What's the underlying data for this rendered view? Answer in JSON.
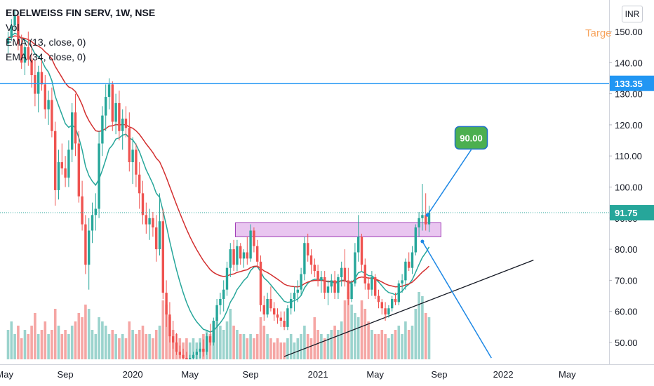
{
  "header": {
    "symbol_line": "EDELWEISS FIN SERV, 1W, NSE",
    "indicators": [
      "Vol",
      "EMA (13, close, 0)",
      "EMA (34, close, 0)"
    ],
    "target_text": "Targe",
    "currency": "INR"
  },
  "colors": {
    "up": "#26a69a",
    "down": "#ef5350",
    "vol_up": "#9bd3cd",
    "vol_down": "#f5a6a4",
    "ema13": "#26a69a",
    "ema34": "#d32f2f",
    "hline": "#2196f3",
    "projection": "#1e88e5",
    "trendline": "#131722",
    "zone_fill": "#e9c6f0",
    "zone_border": "#a23fb8",
    "target_bubble": "#4caf50",
    "last_price_bg": "#26a69a",
    "level_bg": "#2196f3"
  },
  "chart_data": {
    "type": "candlestick",
    "title": "EDELWEISS FIN SERV, 1W, NSE",
    "price_axis": {
      "ticks": [
        "50.00",
        "60.00",
        "70.00",
        "80.00",
        "90.00",
        "100.00",
        "110.00",
        "120.00",
        "130.00",
        "140.00",
        "150.00"
      ],
      "range": [
        45,
        158
      ]
    },
    "time_axis": {
      "labels": [
        "May",
        "Sep",
        "2020",
        "May",
        "Sep",
        "2021",
        "May",
        "Sep",
        "2022",
        "May"
      ],
      "label_bar_index": [
        -1,
        17,
        37,
        54,
        72,
        92,
        109,
        128,
        147,
        166
      ]
    },
    "annotations": {
      "horizontal_level": {
        "value": 133.35,
        "label": "133.35"
      },
      "last_price": {
        "value": 91.75,
        "label": "91.75"
      },
      "target_bubble": {
        "text": "90.00"
      },
      "resistance_zone": {
        "from_bar": 67.5,
        "to_bar": 128.5,
        "low": 84,
        "high": 88.5
      },
      "projection_up": {
        "points": [
          [
            124.5,
            91
          ],
          [
            137.5,
            112
          ]
        ]
      },
      "projection_down": {
        "points": [
          [
            123,
            82.5
          ],
          [
            143.5,
            45
          ]
        ]
      },
      "support_trendline": {
        "points": [
          [
            82,
            45.5
          ],
          [
            156,
            76.5
          ]
        ]
      }
    },
    "ohlc_legend": "Open, High, Low, Close weekly",
    "candles": [
      [
        146,
        150,
        143,
        148
      ],
      [
        148,
        154,
        147,
        152
      ],
      [
        152,
        157,
        150,
        155
      ],
      [
        155,
        156,
        144,
        146
      ],
      [
        146,
        149,
        138,
        140
      ],
      [
        140,
        147,
        136,
        145
      ],
      [
        145,
        150,
        139,
        141
      ],
      [
        141,
        146,
        132,
        136
      ],
      [
        136,
        141,
        126,
        130
      ],
      [
        130,
        139,
        124,
        137
      ],
      [
        137,
        142,
        131,
        133
      ],
      [
        133,
        136,
        122,
        125
      ],
      [
        125,
        131,
        120,
        128
      ],
      [
        128,
        132,
        116,
        118
      ],
      [
        118,
        121,
        94,
        99
      ],
      [
        99,
        112,
        96,
        108
      ],
      [
        108,
        114,
        104,
        106
      ],
      [
        106,
        110,
        100,
        103
      ],
      [
        103,
        115,
        100,
        112
      ],
      [
        112,
        127,
        108,
        124
      ],
      [
        124,
        130,
        110,
        114
      ],
      [
        114,
        118,
        95,
        97
      ],
      [
        97,
        102,
        86,
        88
      ],
      [
        88,
        91,
        72,
        75
      ],
      [
        75,
        90,
        67,
        86
      ],
      [
        86,
        95,
        82,
        91
      ],
      [
        91,
        98,
        86,
        93
      ],
      [
        93,
        118,
        90,
        114
      ],
      [
        114,
        126,
        110,
        123
      ],
      [
        123,
        133,
        118,
        129
      ],
      [
        129,
        135,
        125,
        133
      ],
      [
        133,
        134,
        118,
        121
      ],
      [
        121,
        130,
        117,
        127
      ],
      [
        127,
        131,
        115,
        118
      ],
      [
        118,
        125,
        112,
        122
      ],
      [
        122,
        126,
        116,
        119
      ],
      [
        119,
        124,
        105,
        108
      ],
      [
        108,
        116,
        101,
        112
      ],
      [
        112,
        114,
        100,
        104
      ],
      [
        104,
        108,
        93,
        98
      ],
      [
        98,
        102,
        88,
        91
      ],
      [
        91,
        95,
        85,
        88
      ],
      [
        88,
        93,
        83,
        90
      ],
      [
        90,
        92,
        84,
        87
      ],
      [
        87,
        91,
        76,
        80
      ],
      [
        80,
        98,
        78,
        89
      ],
      [
        89,
        93,
        64,
        66
      ],
      [
        66,
        70,
        55,
        59
      ],
      [
        59,
        63,
        50,
        52
      ],
      [
        52,
        57,
        48,
        50
      ],
      [
        50,
        53,
        46,
        47
      ],
      [
        47,
        49,
        45,
        46
      ],
      [
        46,
        48,
        44,
        45
      ],
      [
        45,
        47,
        43,
        44
      ],
      [
        44,
        46,
        42,
        45
      ],
      [
        45,
        47,
        43,
        46
      ],
      [
        46,
        48,
        44,
        47
      ],
      [
        47,
        50,
        45,
        48
      ],
      [
        48,
        51,
        45.5,
        47
      ],
      [
        47,
        53,
        46,
        52
      ],
      [
        52,
        56,
        49,
        50
      ],
      [
        50,
        58,
        49,
        57
      ],
      [
        57,
        64,
        55,
        62
      ],
      [
        62,
        66,
        59,
        64
      ],
      [
        64,
        70,
        60,
        67
      ],
      [
        67,
        76,
        65,
        74
      ],
      [
        74,
        82,
        71,
        80
      ],
      [
        80,
        83,
        73,
        75
      ],
      [
        75,
        83,
        73,
        81
      ],
      [
        81,
        82,
        75,
        77
      ],
      [
        77,
        80,
        74,
        79
      ],
      [
        79,
        84,
        75,
        77
      ],
      [
        77,
        88,
        76,
        86
      ],
      [
        86,
        87,
        79,
        81
      ],
      [
        81,
        83,
        74,
        76
      ],
      [
        76,
        78,
        60,
        62
      ],
      [
        62,
        65,
        57,
        59
      ],
      [
        59,
        66,
        58,
        64
      ],
      [
        64,
        68,
        60,
        61
      ],
      [
        61,
        63,
        57,
        59
      ],
      [
        59,
        61,
        56,
        58
      ],
      [
        58,
        60,
        55,
        57
      ],
      [
        57,
        60,
        54,
        55
      ],
      [
        55,
        62,
        54,
        61
      ],
      [
        61,
        66,
        59,
        64
      ],
      [
        64,
        68,
        60,
        66
      ],
      [
        66,
        70,
        63,
        67
      ],
      [
        67,
        74,
        65,
        72
      ],
      [
        72,
        84,
        70,
        82
      ],
      [
        82,
        85,
        76,
        78
      ],
      [
        78,
        80,
        72,
        75
      ],
      [
        75,
        77,
        71,
        73
      ],
      [
        73,
        75,
        68,
        70
      ],
      [
        70,
        73,
        66,
        71
      ],
      [
        71,
        73,
        64,
        66
      ],
      [
        66,
        70,
        62,
        68
      ],
      [
        68,
        72,
        66,
        70
      ],
      [
        70,
        73,
        64,
        66
      ],
      [
        66,
        72,
        64,
        71
      ],
      [
        71,
        76,
        68,
        74
      ],
      [
        74,
        80,
        68,
        70
      ],
      [
        70,
        74,
        62,
        64
      ],
      [
        64,
        70,
        63,
        69
      ],
      [
        69,
        82,
        68,
        79
      ],
      [
        79,
        91,
        76,
        84
      ],
      [
        84,
        85,
        73,
        75
      ],
      [
        75,
        77,
        67,
        69
      ],
      [
        69,
        71,
        64,
        67
      ],
      [
        67,
        73,
        65,
        71
      ],
      [
        71,
        72,
        64,
        65
      ],
      [
        65,
        67,
        61,
        63
      ],
      [
        63,
        64,
        59,
        61
      ],
      [
        61,
        63,
        57,
        59
      ],
      [
        59,
        62,
        58,
        61
      ],
      [
        61,
        65,
        60,
        64
      ],
      [
        64,
        66,
        62,
        63
      ],
      [
        63,
        70,
        62,
        69
      ],
      [
        69,
        72,
        66,
        70
      ],
      [
        70,
        77,
        67,
        76
      ],
      [
        76,
        79,
        73,
        74
      ],
      [
        74,
        81,
        72,
        79
      ],
      [
        79,
        88,
        78,
        87
      ],
      [
        87,
        92,
        84,
        90
      ],
      [
        90,
        101,
        86,
        91
      ],
      [
        91,
        98,
        86,
        88
      ],
      [
        88,
        94,
        85.5,
        91.75
      ]
    ],
    "volumes": [
      0.35,
      0.45,
      0.3,
      0.4,
      0.25,
      0.35,
      0.3,
      0.4,
      0.55,
      0.3,
      0.35,
      0.45,
      0.3,
      0.35,
      0.6,
      0.4,
      0.3,
      0.35,
      0.3,
      0.4,
      0.45,
      0.55,
      0.5,
      0.65,
      0.6,
      0.35,
      0.3,
      0.5,
      0.45,
      0.4,
      0.3,
      0.35,
      0.3,
      0.25,
      0.3,
      0.25,
      0.45,
      0.35,
      0.3,
      0.35,
      0.4,
      0.3,
      0.3,
      0.25,
      0.35,
      0.4,
      0.7,
      0.65,
      0.5,
      0.35,
      0.3,
      0.25,
      0.2,
      0.25,
      0.2,
      0.25,
      0.2,
      0.25,
      0.3,
      0.35,
      0.3,
      0.45,
      0.5,
      0.4,
      0.35,
      0.45,
      0.6,
      0.4,
      0.35,
      0.3,
      0.3,
      0.25,
      0.3,
      0.25,
      0.3,
      0.5,
      0.4,
      0.3,
      0.25,
      0.2,
      0.25,
      0.2,
      0.2,
      0.25,
      0.3,
      0.2,
      0.25,
      0.3,
      0.4,
      0.3,
      0.25,
      0.5,
      0.35,
      0.3,
      0.25,
      0.3,
      0.35,
      0.4,
      0.35,
      0.45,
      0.7,
      0.8,
      0.65,
      0.55,
      0.5,
      0.7,
      0.6,
      0.45,
      0.35,
      0.3,
      0.3,
      0.35,
      0.3,
      0.25,
      0.3,
      0.35,
      0.4,
      0.3,
      0.45,
      0.35,
      0.4,
      0.6,
      0.8,
      0.75,
      0.55,
      0.5
    ]
  }
}
